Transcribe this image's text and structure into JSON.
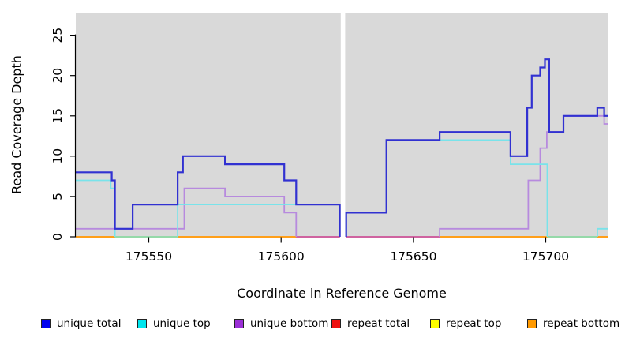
{
  "chart_data": {
    "type": "line",
    "style": "step-after",
    "title": "",
    "xlabel": "Coordinate in Reference Genome",
    "ylabel": "Read Coverage Depth",
    "xlim": [
      175522.4,
      175723.7
    ],
    "ylim": [
      0,
      27.7
    ],
    "x_ticks": [
      175550,
      175600,
      175650,
      175700
    ],
    "y_ticks": [
      0,
      5,
      10,
      15,
      20,
      25
    ],
    "grid": "off",
    "panel_bg": "#d9d9d9",
    "gap": {
      "from": 175622.2,
      "to": 175624.6,
      "color": "#ffffff"
    },
    "series": [
      {
        "name": "repeat total",
        "key": "repeat-total",
        "line_color": "#dd2222",
        "width": 1.6,
        "layer": 1,
        "paths": [
          [
            [
              175522.4,
              0
            ],
            [
              175622.2,
              0
            ]
          ],
          [
            [
              175624.6,
              0
            ],
            [
              175723.7,
              0
            ]
          ]
        ]
      },
      {
        "name": "repeat top",
        "key": "repeat-top",
        "line_color": "#ffe100",
        "width": 1.6,
        "layer": 1,
        "paths": [
          [
            [
              175522.4,
              0
            ],
            [
              175622.2,
              0
            ]
          ],
          [
            [
              175624.6,
              0
            ],
            [
              175723.7,
              0
            ]
          ]
        ]
      },
      {
        "name": "repeat bottom",
        "key": "repeat-bottom",
        "line_color": "#ff9f1a",
        "width": 2,
        "layer": 1,
        "paths": [
          [
            [
              175522.4,
              0
            ],
            [
              175622.2,
              0
            ]
          ],
          [
            [
              175624.6,
              0
            ],
            [
              175723.7,
              0
            ]
          ]
        ]
      },
      {
        "name": "unique bottom",
        "key": "unique-bottom",
        "line_color": "#b78ade",
        "width": 1.8,
        "layer": 2,
        "paths": [
          [
            [
              175522.4,
              1
            ],
            [
              175563.4,
              6
            ],
            [
              175578.8,
              5
            ],
            [
              175601.2,
              3
            ],
            [
              175605.7,
              0
            ]
          ],
          [
            [
              175659.9,
              0
            ],
            [
              175659.9,
              1
            ],
            [
              175693.4,
              7
            ],
            [
              175697.9,
              11
            ],
            [
              175700.4,
              13
            ],
            [
              175706.7,
              15
            ],
            [
              175722.1,
              14
            ],
            [
              175723.7,
              14
            ]
          ]
        ]
      },
      {
        "name": "unique top",
        "key": "unique-top",
        "line_color": "#79e3ea",
        "width": 1.8,
        "layer": 2,
        "paths": [
          [
            [
              175522.4,
              7
            ],
            [
              175535.6,
              6
            ],
            [
              175537.2,
              0
            ]
          ],
          [
            [
              175560.9,
              0
            ],
            [
              175560.9,
              4
            ],
            [
              175622.2,
              4
            ],
            [
              175622.2,
              0
            ]
          ],
          [
            [
              175624.6,
              0
            ],
            [
              175624.6,
              3
            ],
            [
              175639.8,
              12
            ],
            [
              175686.7,
              9
            ],
            [
              175700.6,
              0
            ]
          ],
          [
            [
              175719.5,
              0
            ],
            [
              175719.5,
              1
            ],
            [
              175723.7,
              1
            ]
          ]
        ]
      },
      {
        "name": "unique total",
        "key": "unique-total",
        "line_color": "#3131d1",
        "width": 2.2,
        "layer": 2,
        "paths": [
          [
            [
              175522.4,
              8
            ],
            [
              175536,
              7
            ],
            [
              175537.2,
              1
            ],
            [
              175543.9,
              4
            ],
            [
              175560.9,
              8
            ],
            [
              175562.9,
              10
            ],
            [
              175578.8,
              9
            ],
            [
              175601.2,
              7
            ],
            [
              175605.7,
              4
            ],
            [
              175622.2,
              0
            ]
          ],
          [
            [
              175624.6,
              0
            ],
            [
              175624.6,
              3
            ],
            [
              175639.8,
              12
            ],
            [
              175659.9,
              13
            ],
            [
              175686.7,
              10
            ],
            [
              175693,
              16
            ],
            [
              175694.7,
              20
            ],
            [
              175697.9,
              21
            ],
            [
              175699.7,
              22
            ],
            [
              175701.3,
              13
            ],
            [
              175706.7,
              15
            ],
            [
              175719.5,
              16
            ],
            [
              175722.1,
              15
            ],
            [
              175723.7,
              15
            ]
          ]
        ]
      }
    ],
    "baseline_overlays": [
      {
        "color": "#cf63a0",
        "from": 175605.7,
        "to": 175622.2
      },
      {
        "color": "#cf63a0",
        "from": 175624.6,
        "to": 175659.9
      },
      {
        "color": "#95d9a9",
        "from": 175537.2,
        "to": 175561.2
      },
      {
        "color": "#95d9a9",
        "from": 175700.6,
        "to": 175719.5
      }
    ],
    "legend_position": "bottom"
  },
  "legend": {
    "items": [
      {
        "label": "unique total",
        "color": "#0000ee"
      },
      {
        "label": "unique top",
        "color": "#00e6ee"
      },
      {
        "label": "unique bottom",
        "color": "#9b30d6"
      },
      {
        "label": "repeat total",
        "color": "#ee1111"
      },
      {
        "label": "repeat top",
        "color": "#ffff00"
      },
      {
        "label": "repeat bottom",
        "color": "#ff9900"
      }
    ]
  }
}
